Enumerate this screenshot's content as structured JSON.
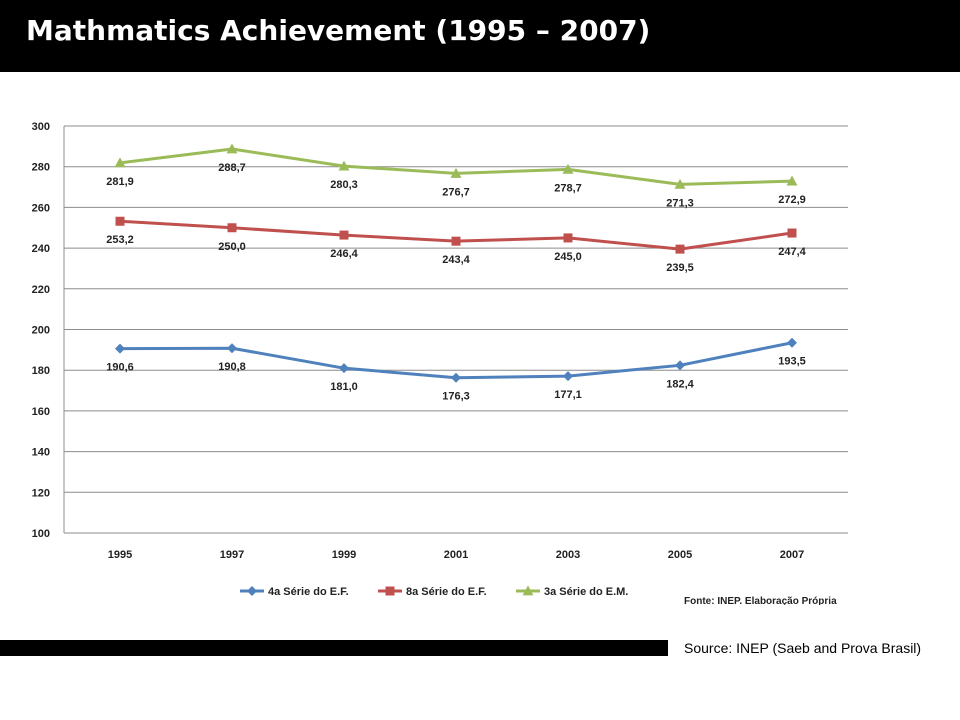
{
  "header": {
    "title": "Mathmatics Achievement (1995 – 2007)"
  },
  "footer": {
    "source": "Source: INEP (Saeb and Prova Brasil)"
  },
  "chart_data": {
    "type": "line",
    "x": [
      "1995",
      "1997",
      "1999",
      "2001",
      "2003",
      "2005",
      "2007"
    ],
    "ylim": [
      100,
      300
    ],
    "yticks": [
      100,
      120,
      140,
      160,
      180,
      200,
      220,
      240,
      260,
      280,
      300
    ],
    "ytick_labels": [
      "100",
      "120",
      "140",
      "160",
      "180",
      "200",
      "220",
      "240",
      "260",
      "280",
      "300"
    ],
    "grid": true,
    "legend": "bottom",
    "credit": "Fonte: INEP. Elaboração Própria",
    "series": [
      {
        "name": "4a Série do E.F.",
        "color": "#4f81bd",
        "marker": "diamond",
        "values": [
          190.6,
          190.8,
          181.0,
          176.3,
          177.1,
          182.4,
          193.5
        ],
        "labels": [
          "190,6",
          "190,8",
          "181,0",
          "176,3",
          "177,1",
          "182,4",
          "193,5"
        ]
      },
      {
        "name": "8a Série do E.F.",
        "color": "#c0504d",
        "marker": "square",
        "values": [
          253.2,
          250.0,
          246.4,
          243.4,
          245.0,
          239.5,
          247.4
        ],
        "labels": [
          "253,2",
          "250,0",
          "246,4",
          "243,4",
          "245,0",
          "239,5",
          "247,4"
        ]
      },
      {
        "name": "3a Série do E.M.",
        "color": "#9bbb59",
        "marker": "triangle",
        "values": [
          281.9,
          288.7,
          280.3,
          276.7,
          278.7,
          271.3,
          272.9
        ],
        "labels": [
          "281,9",
          "288,7",
          "280,3",
          "276,7",
          "278,7",
          "271,3",
          "272,9"
        ]
      }
    ]
  }
}
